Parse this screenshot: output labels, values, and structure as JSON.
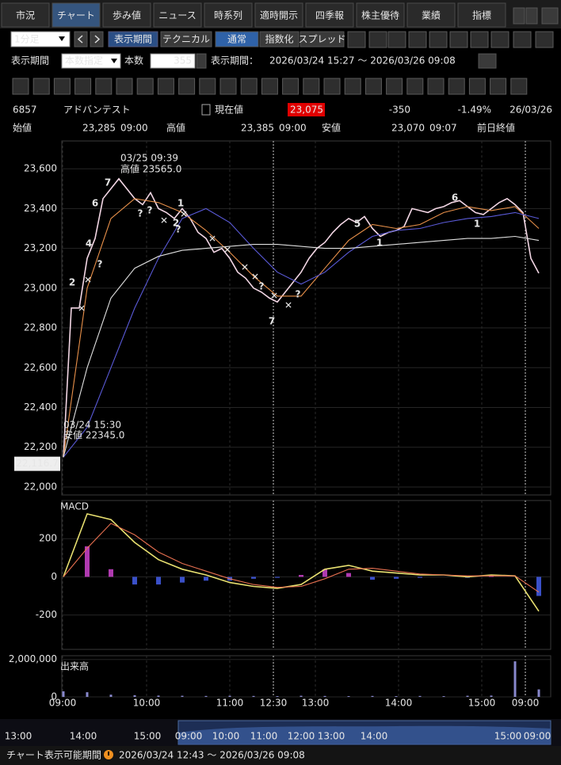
{
  "tabs": [
    "市況",
    "チャート",
    "歩み値",
    "ニュース",
    "時系列",
    "適時開示",
    "四季報",
    "株主優待",
    "業績",
    "指標"
  ],
  "toolbar": {
    "interval": "1分足",
    "period_button": "表示期間",
    "technical_button": "テクニカル",
    "modes": [
      "通常",
      "指数化",
      "スプレッド"
    ]
  },
  "period_bar": {
    "label": "表示期間",
    "mode": "本数指定",
    "count_label": "本数",
    "count": "355",
    "range_label": "表示期間：",
    "range": "2026/03/24 15:27 ～ 2026/03/26 09:08"
  },
  "quote": {
    "code": "6857",
    "name": "アドバンテスト",
    "current_label": "現在値",
    "current": "23,075",
    "change": "-350",
    "change_pct": "-1.49%",
    "date": "26/03/26"
  },
  "ohlc": {
    "open_label": "始値",
    "open": "23,285",
    "open_time": "09:00",
    "high_label": "高値",
    "high": "23,385",
    "high_time": "09:00",
    "low_label": "安値",
    "low": "23,070",
    "low_time": "09:07",
    "prev_close_label": "前日終値"
  },
  "price_chart": {
    "type": "line",
    "ylim": [
      21960,
      23740
    ],
    "yticks": [
      {
        "value": 22000,
        "label": "22,000"
      },
      {
        "value": 22200,
        "label": "22,200"
      },
      {
        "value": 22400,
        "label": "22,400"
      },
      {
        "value": 22600,
        "label": "22,600"
      },
      {
        "value": 22800,
        "label": "22,800"
      },
      {
        "value": 23000,
        "label": "23,000"
      },
      {
        "value": 23200,
        "label": "23,200"
      },
      {
        "value": 23400,
        "label": "23,400"
      },
      {
        "value": 23600,
        "label": "23,600"
      }
    ],
    "series": [
      {
        "color": "#f2d6e4",
        "values": [
          22150,
          22900,
          22900,
          23150,
          23250,
          23450,
          23500,
          23550,
          23500,
          23450,
          23420,
          23480,
          23400,
          23380,
          23350,
          23400,
          23350,
          23280,
          23250,
          23180,
          23200,
          23150,
          23080,
          23050,
          23000,
          22980,
          22950,
          22930,
          22980,
          23030,
          23080,
          23150,
          23200,
          23230,
          23280,
          23320,
          23350,
          23330,
          23360,
          23300,
          23260,
          23280,
          23290,
          23310,
          23400,
          23390,
          23380,
          23400,
          23410,
          23430,
          23440,
          23410,
          23380,
          23370,
          23400,
          23430,
          23450,
          23420,
          23380,
          23150,
          23075
        ]
      },
      {
        "color": "#e8904a",
        "values": [
          22150,
          23000,
          23350,
          23450,
          23430,
          23380,
          23290,
          23180,
          23060,
          22960,
          22960,
          23100,
          23240,
          23320,
          23300,
          23320,
          23380,
          23410,
          23390,
          23410,
          23300
        ]
      },
      {
        "color": "#5a5ad8",
        "values": [
          22150,
          22300,
          22600,
          22900,
          23150,
          23350,
          23400,
          23330,
          23200,
          23080,
          23020,
          23080,
          23180,
          23260,
          23290,
          23300,
          23330,
          23350,
          23360,
          23380,
          23350
        ]
      },
      {
        "color": "#e0e0e0",
        "values": [
          22150,
          22600,
          22950,
          23100,
          23160,
          23190,
          23200,
          23210,
          23220,
          23220,
          23210,
          23200,
          23200,
          23210,
          23220,
          23230,
          23240,
          23250,
          23250,
          23260,
          23240
        ]
      }
    ],
    "annotations": [
      "03/25 09:39",
      "高値 23565.0",
      "03/24 15:30",
      "安値 22345.0"
    ],
    "marker": {
      "value": 22116.7,
      "label": "22,116.7"
    },
    "signals": [
      {
        "label": "2",
        "color": "#f5d020"
      },
      {
        "label": "4",
        "color": "#f5d020"
      },
      {
        "label": "7",
        "color": "#e03030"
      },
      {
        "label": "6",
        "color": "#e03030"
      },
      {
        "label": "1",
        "color": "#f5d020"
      },
      {
        "label": "2",
        "color": "#f5d020"
      },
      {
        "label": "7",
        "color": "#e03030"
      },
      {
        "label": "5",
        "color": "#e03030"
      },
      {
        "label": "1",
        "color": "#f5d020"
      },
      {
        "label": "6",
        "color": "#e03030"
      },
      {
        "label": "1",
        "color": "#f5d020"
      },
      {
        "label": "✕",
        "color": "#38c8f0"
      },
      {
        "label": "✕",
        "color": "#38c8f0"
      },
      {
        "label": "✕",
        "color": "#38c8f0"
      },
      {
        "label": "✕",
        "color": "#38c8f0"
      },
      {
        "label": "✕",
        "color": "#38c8f0"
      },
      {
        "label": "✕",
        "color": "#38c8f0"
      },
      {
        "label": "✕",
        "color": "#38c8f0"
      },
      {
        "label": "✕",
        "color": "#38c8f0"
      },
      {
        "label": "✕",
        "color": "#38c8f0"
      },
      {
        "label": "✕",
        "color": "#38c8f0"
      },
      {
        "label": "?",
        "color": "#38c8f0"
      },
      {
        "label": "?",
        "color": "#38c8f0"
      },
      {
        "label": "?",
        "color": "#38c8f0"
      },
      {
        "label": "?",
        "color": "#38c8f0"
      },
      {
        "label": "?",
        "color": "#38c8f0"
      },
      {
        "label": "?",
        "color": "#38c8f0"
      }
    ]
  },
  "macd": {
    "type": "line",
    "title": "MACD",
    "ylim": [
      -380,
      400
    ],
    "yticks": [
      -200,
      0,
      200
    ],
    "series": [
      {
        "color": "#e8e070",
        "values": [
          0,
          330,
          300,
          180,
          90,
          40,
          10,
          -30,
          -50,
          -60,
          -40,
          40,
          60,
          30,
          20,
          10,
          10,
          0,
          10,
          5,
          -180
        ]
      },
      {
        "color": "#e87050",
        "values": [
          0,
          150,
          280,
          220,
          130,
          70,
          30,
          -10,
          -40,
          -55,
          -50,
          -10,
          40,
          45,
          30,
          15,
          10,
          5,
          5,
          5,
          -80
        ]
      }
    ],
    "histogram": {
      "pos_color": "#b03ab0",
      "neg_color": "#3a50c8",
      "values": [
        0,
        160,
        40,
        -40,
        -40,
        -30,
        -20,
        -20,
        -10,
        -5,
        10,
        40,
        20,
        -15,
        -10,
        -5,
        0,
        -5,
        5,
        0,
        -100
      ]
    }
  },
  "volume": {
    "type": "bar",
    "title": "出来高",
    "ylim": [
      0,
      2200000
    ],
    "yticks": [
      {
        "value": 0,
        "label": "0"
      },
      {
        "value": 2000000,
        "label": "2,000,000"
      }
    ],
    "color": "#8888cc",
    "values": [
      300000,
      250000,
      120000,
      90000,
      70000,
      60000,
      50000,
      60000,
      50000,
      40000,
      60000,
      50000,
      40000,
      50000,
      40000,
      50000,
      40000,
      60000,
      70000,
      1900000,
      400000
    ]
  },
  "x_axis": {
    "labels": [
      "09:00",
      "10:00",
      "11:00",
      "12:30",
      "13:00",
      "14:00",
      "15:00",
      "09:00"
    ]
  },
  "navigator": {
    "labels": [
      "13:00",
      "14:00",
      "15:00",
      "09:00",
      "10:00",
      "11:00",
      "12:00",
      "13:00",
      "14:00",
      "15:00",
      "09:00"
    ]
  },
  "footer": {
    "label": "チャート表示可能期間",
    "range": "2026/03/24 12:43 ～ 2026/03/26 09:08"
  }
}
